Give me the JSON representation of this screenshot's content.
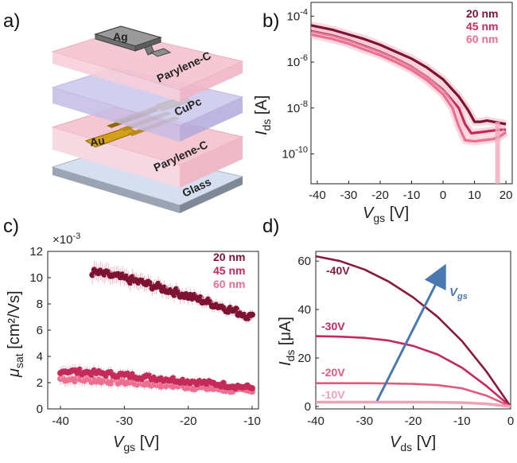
{
  "panels": {
    "a": "a)",
    "b": "b)",
    "c": "c)",
    "d": "d)"
  },
  "colors": {
    "dark": "#7d1233",
    "mid": "#c42a5a",
    "light": "#ec6e90",
    "arrow": "#4a78b0"
  },
  "device": {
    "layers": [
      "Ag",
      "Parylene-C",
      "CuPc",
      "Au",
      "Parylene-C",
      "Glass"
    ]
  },
  "legend": [
    "20 nm",
    "45 nm",
    "60 nm"
  ],
  "chart_data": [
    {
      "panel": "b",
      "type": "line",
      "xlabel": "V",
      "xlabel_sub": "gs",
      "xlabel_unit": " [V]",
      "ylabel": "I",
      "ylabel_sub": "ds",
      "ylabel_unit": " [A]",
      "yscale": "log",
      "xlim": [
        -42,
        22
      ],
      "ylim_exp": [
        -11.3,
        -3.4
      ],
      "xticks": [
        "-40",
        "-30",
        "-20",
        "-10",
        "0",
        "10",
        "20"
      ],
      "xtick_values": [
        -40,
        -30,
        -20,
        -10,
        0,
        10,
        20
      ],
      "ytick_exps": [
        -4,
        -6,
        -8,
        -10
      ],
      "series": [
        {
          "name": "20 nm",
          "x": [
            -42,
            -35,
            -30,
            -25,
            -20,
            -15,
            -10,
            -5,
            0,
            5,
            8,
            10,
            12,
            14,
            16,
            18,
            20
          ],
          "log_y": [
            -4.4,
            -4.6,
            -4.8,
            -5.0,
            -5.25,
            -5.55,
            -5.85,
            -6.25,
            -6.75,
            -7.5,
            -8.1,
            -8.6,
            -8.6,
            -8.55,
            -8.6,
            -8.65,
            -8.7
          ]
        },
        {
          "name": "45 nm",
          "x": [
            -42,
            -35,
            -30,
            -25,
            -20,
            -15,
            -10,
            -5,
            0,
            5,
            7,
            9,
            12,
            15,
            18,
            20
          ],
          "log_y": [
            -4.65,
            -4.85,
            -5.05,
            -5.3,
            -5.55,
            -5.85,
            -6.2,
            -6.65,
            -7.2,
            -8.0,
            -8.7,
            -9.1,
            -9.05,
            -9.0,
            -8.95,
            -8.95
          ]
        },
        {
          "name": "60 nm",
          "x": [
            -42,
            -35,
            -30,
            -25,
            -20,
            -15,
            -10,
            -5,
            0,
            3,
            5,
            7,
            10,
            13,
            16,
            18,
            20
          ],
          "log_y": [
            -4.8,
            -5.0,
            -5.2,
            -5.45,
            -5.7,
            -6.0,
            -6.35,
            -6.8,
            -7.4,
            -8.0,
            -8.8,
            -9.4,
            -9.45,
            -9.4,
            -9.35,
            -9.25,
            -9.05
          ]
        }
      ]
    },
    {
      "panel": "c",
      "type": "scatter",
      "xlabel": "V",
      "xlabel_sub": "gs",
      "xlabel_unit": " [V]",
      "ylabel": "μ",
      "ylabel_sub": "sat",
      "ylabel_unit": " [cm²/Vs]",
      "multiplier": "×10",
      "multiplier_exp": "-3",
      "xlim": [
        -42,
        -9
      ],
      "ylim": [
        0,
        12
      ],
      "xticks": [
        "-40",
        "-30",
        "-20",
        "-10"
      ],
      "xtick_values": [
        -40,
        -30,
        -20,
        -10
      ],
      "yticks": [
        "0",
        "2",
        "4",
        "6",
        "8",
        "10",
        "12"
      ],
      "ytick_values": [
        0,
        2,
        4,
        6,
        8,
        10,
        12
      ],
      "series": [
        {
          "name": "20 nm",
          "x_range": [
            -35,
            -10
          ],
          "y_start": 10.4,
          "y_end": 7.0
        },
        {
          "name": "45 nm",
          "x_range": [
            -40,
            -10
          ],
          "y_start": 2.9,
          "y_end": 1.6
        },
        {
          "name": "60 nm",
          "x_range": [
            -40,
            -10
          ],
          "y_start": 2.3,
          "y_end": 1.3
        }
      ]
    },
    {
      "panel": "d",
      "type": "line",
      "xlabel": "V",
      "xlabel_sub": "ds",
      "xlabel_unit": " [V]",
      "ylabel": "I",
      "ylabel_sub": "ds",
      "ylabel_unit": " [μA]",
      "xlim": [
        -40,
        0
      ],
      "ylim": [
        -1,
        64
      ],
      "xticks": [
        "-40",
        "-30",
        "-20",
        "-10",
        "0"
      ],
      "xtick_values": [
        -40,
        -30,
        -20,
        -10,
        0
      ],
      "yticks": [
        "0",
        "20",
        "40",
        "60"
      ],
      "ytick_values": [
        0,
        20,
        40,
        60
      ],
      "arrow_label": "V",
      "arrow_label_sub": "gs",
      "series": [
        {
          "name": "-40V",
          "x": [
            -40,
            -35,
            -30,
            -25,
            -20,
            -15,
            -10,
            -5,
            0
          ],
          "y": [
            62,
            60,
            56.5,
            51.5,
            45,
            37,
            27,
            14.5,
            0
          ]
        },
        {
          "name": "-30V",
          "x": [
            -40,
            -35,
            -30,
            -25,
            -20,
            -15,
            -10,
            -5,
            0
          ],
          "y": [
            29,
            28.8,
            28.3,
            27.2,
            25,
            21.5,
            16,
            8.5,
            0
          ]
        },
        {
          "name": "-20V",
          "x": [
            -40,
            -35,
            -30,
            -25,
            -20,
            -15,
            -10,
            -5,
            0
          ],
          "y": [
            9.6,
            9.6,
            9.6,
            9.5,
            9.3,
            8.8,
            7.5,
            4.5,
            0
          ]
        },
        {
          "name": "-10V",
          "x": [
            -40,
            -35,
            -30,
            -25,
            -20,
            -15,
            -10,
            -5,
            0
          ],
          "y": [
            1.8,
            1.8,
            1.8,
            1.8,
            1.8,
            1.75,
            1.6,
            1.1,
            0
          ]
        }
      ]
    }
  ]
}
